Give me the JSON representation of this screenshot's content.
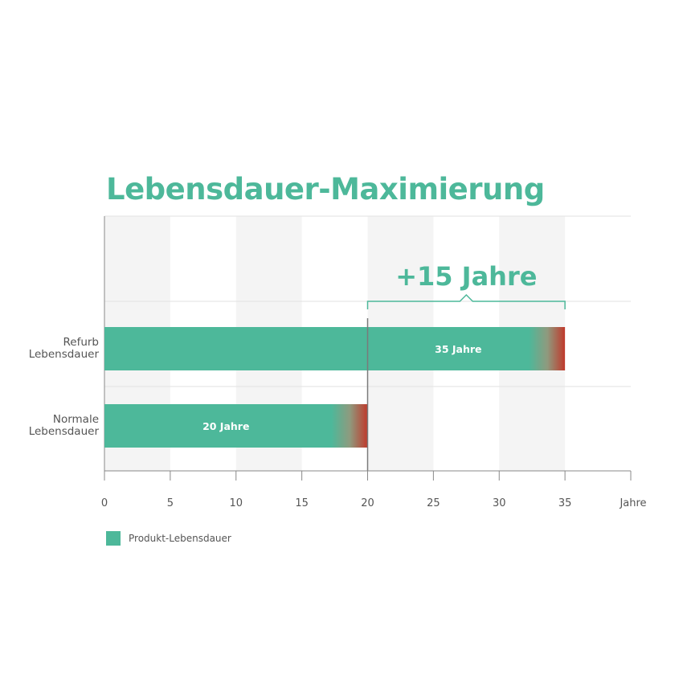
{
  "chart_data": {
    "type": "bar",
    "orientation": "horizontal",
    "title": "Lebensdauer-Maximierung",
    "categories": [
      "Refurb\nLebensdauer",
      "Normale\nLebensdauer"
    ],
    "values": [
      35,
      20
    ],
    "value_labels": [
      "35 Jahre",
      "20 Jahre"
    ],
    "series": [
      {
        "name": "Produkt-Lebensdauer",
        "values": [
          35,
          20
        ],
        "color": "#4db89a"
      }
    ],
    "end_color": "#c0392b",
    "xlim": [
      0,
      40
    ],
    "xticks": [
      0,
      5,
      10,
      15,
      20,
      25,
      30,
      35
    ],
    "xlabel": "Jahre",
    "reference_line": 20,
    "annotation": {
      "text": "+15 Jahre",
      "from": 20,
      "to": 35
    },
    "grid": true,
    "legend_position": "bottom-left"
  }
}
